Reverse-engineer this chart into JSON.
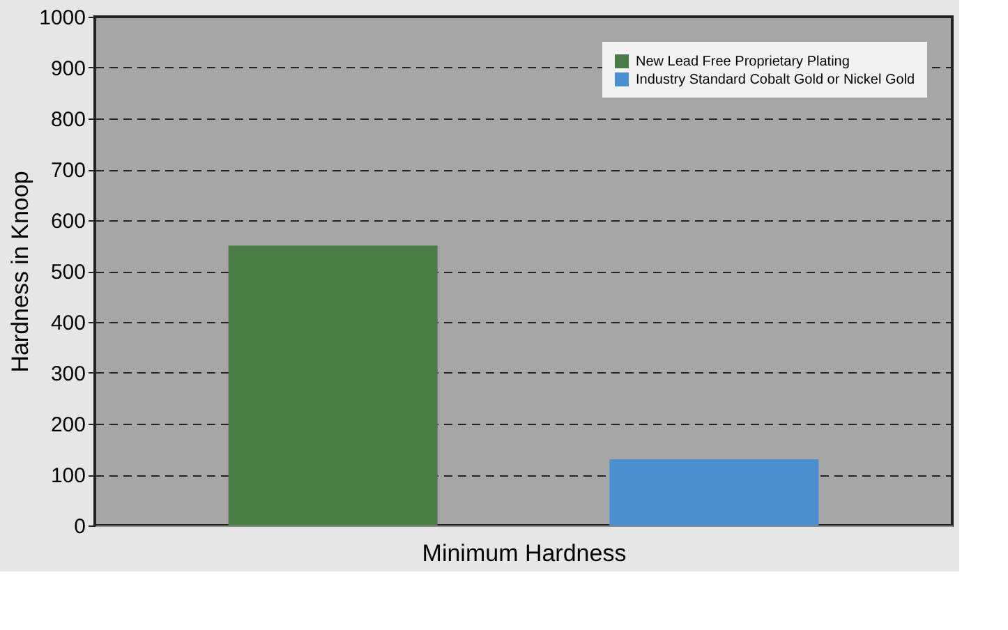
{
  "chart_data": {
    "type": "bar",
    "xlabel": "Minimum Hardness",
    "ylabel": "Hardness in Knoop",
    "categories": [
      null
    ],
    "series": [
      {
        "name": "New Lead Free Proprietary Plating",
        "color": "#4a7c45",
        "values": [
          550
        ]
      },
      {
        "name": "Industry Standard Cobalt Gold or Nickel Gold",
        "color": "#4a90d0",
        "values": [
          130
        ]
      }
    ],
    "ylim": [
      0,
      1000
    ],
    "yticks": [
      0,
      100,
      200,
      300,
      400,
      500,
      600,
      700,
      800,
      900,
      1000
    ],
    "grid": "y",
    "legend": "top right"
  }
}
